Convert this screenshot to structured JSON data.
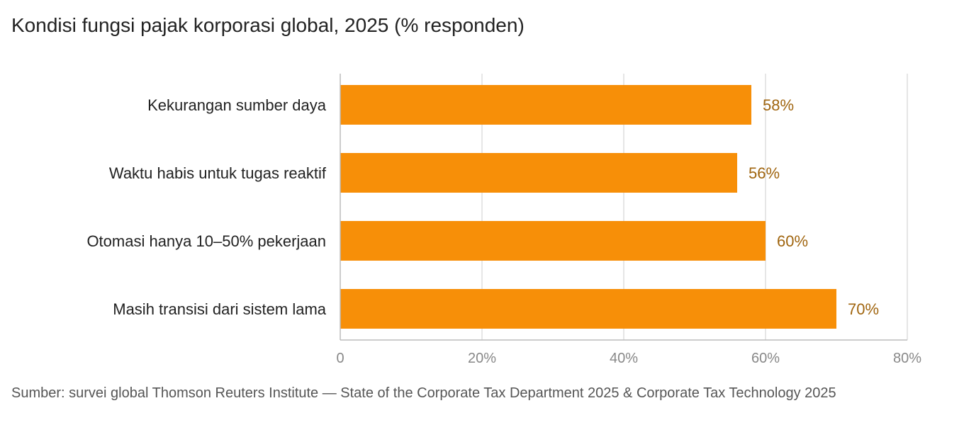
{
  "title": "Kondisi fungsi pajak korporasi global, 2025 (% responden)",
  "source": "Sumber: survei global Thomson Reuters Institute — State of the Corporate Tax Department 2025 & Corporate Tax Technology 2025",
  "colors": {
    "bar": "#F78F08",
    "value_label": "#A0650F",
    "grid": "#DDDDDD",
    "axis": "#BBBBBB"
  },
  "chart_data": {
    "type": "bar",
    "orientation": "horizontal",
    "categories": [
      "Kekurangan sumber daya",
      "Waktu habis untuk tugas reaktif",
      "Otomasi hanya 10–50% pekerjaan",
      "Masih transisi dari sistem lama"
    ],
    "values": [
      58,
      56,
      60,
      70
    ],
    "value_labels": [
      "58%",
      "56%",
      "60%",
      "70%"
    ],
    "xlim": [
      0,
      80
    ],
    "xticks": [
      0,
      20,
      40,
      60,
      80
    ],
    "xtick_labels": [
      "0",
      "20%",
      "40%",
      "60%",
      "80%"
    ],
    "grid": true,
    "legend": "none"
  }
}
